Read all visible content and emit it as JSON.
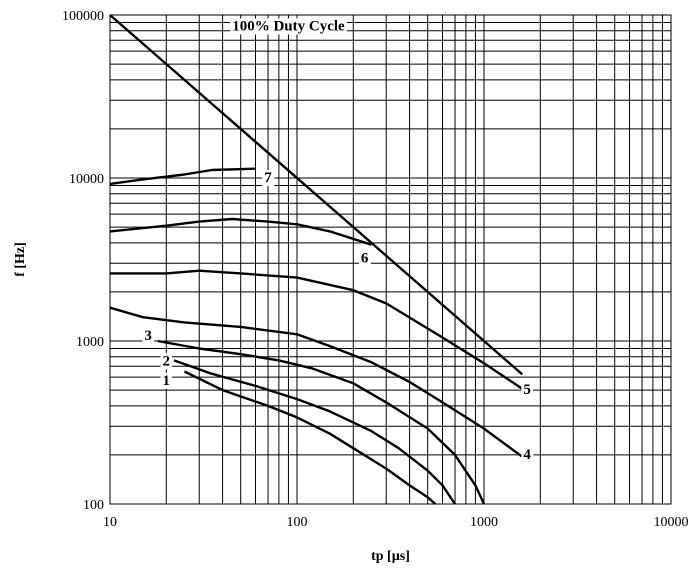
{
  "chart_data": {
    "type": "line",
    "xlabel": "tp [µs]",
    "ylabel": "f [Hz]",
    "x_scale": "log",
    "y_scale": "log",
    "xlim": [
      10,
      10000
    ],
    "ylim": [
      100,
      100000
    ],
    "x_ticks": [
      "10",
      "100",
      "1000",
      "10000"
    ],
    "y_ticks": [
      "100",
      "1000",
      "10000",
      "100000"
    ],
    "grid": true,
    "annotations": [
      {
        "text": "100% Duty Cycle",
        "x": 90,
        "y": 85000
      }
    ],
    "series": [
      {
        "name": "100% Duty Cycle",
        "points": [
          [
            10,
            100000
          ],
          [
            1600,
            625
          ]
        ]
      },
      {
        "name": "1",
        "points": [
          [
            25,
            650
          ],
          [
            40,
            500
          ],
          [
            70,
            400
          ],
          [
            100,
            340
          ],
          [
            150,
            270
          ],
          [
            200,
            220
          ],
          [
            300,
            165
          ],
          [
            400,
            130
          ],
          [
            500,
            110
          ],
          [
            550,
            100
          ]
        ]
      },
      {
        "name": "2",
        "points": [
          [
            22,
            760
          ],
          [
            35,
            630
          ],
          [
            60,
            530
          ],
          [
            100,
            440
          ],
          [
            150,
            370
          ],
          [
            250,
            280
          ],
          [
            350,
            220
          ],
          [
            500,
            160
          ],
          [
            600,
            130
          ],
          [
            700,
            100
          ]
        ]
      },
      {
        "name": "3",
        "points": [
          [
            18,
            1000
          ],
          [
            30,
            900
          ],
          [
            50,
            830
          ],
          [
            80,
            760
          ],
          [
            120,
            680
          ],
          [
            200,
            550
          ],
          [
            300,
            420
          ],
          [
            500,
            290
          ],
          [
            700,
            200
          ],
          [
            900,
            130
          ],
          [
            1000,
            100
          ]
        ]
      },
      {
        "name": "4",
        "points": [
          [
            10,
            1600
          ],
          [
            15,
            1400
          ],
          [
            25,
            1300
          ],
          [
            50,
            1220
          ],
          [
            100,
            1100
          ],
          [
            150,
            930
          ],
          [
            250,
            740
          ],
          [
            400,
            560
          ],
          [
            600,
            420
          ],
          [
            1000,
            290
          ],
          [
            1600,
            195
          ]
        ]
      },
      {
        "name": "5",
        "points": [
          [
            10,
            2600
          ],
          [
            20,
            2600
          ],
          [
            30,
            2700
          ],
          [
            50,
            2600
          ],
          [
            100,
            2450
          ],
          [
            200,
            2050
          ],
          [
            300,
            1700
          ],
          [
            600,
            1050
          ],
          [
            1000,
            730
          ],
          [
            1600,
            510
          ]
        ]
      },
      {
        "name": "6",
        "points": [
          [
            10,
            4700
          ],
          [
            20,
            5100
          ],
          [
            30,
            5400
          ],
          [
            45,
            5600
          ],
          [
            70,
            5400
          ],
          [
            100,
            5200
          ],
          [
            150,
            4700
          ],
          [
            250,
            3900
          ]
        ]
      },
      {
        "name": "7",
        "points": [
          [
            10,
            9200
          ],
          [
            15,
            9800
          ],
          [
            25,
            10500
          ],
          [
            35,
            11200
          ],
          [
            60,
            11400
          ]
        ]
      }
    ],
    "curve_labels": [
      {
        "text": "1",
        "x": 20,
        "y": 570
      },
      {
        "text": "2",
        "x": 20,
        "y": 750
      },
      {
        "text": "3",
        "x": 16,
        "y": 1070
      },
      {
        "text": "4",
        "x": 1700,
        "y": 200
      },
      {
        "text": "5",
        "x": 1700,
        "y": 500
      },
      {
        "text": "6",
        "x": 230,
        "y": 3200
      },
      {
        "text": "7",
        "x": 70,
        "y": 10000
      }
    ]
  }
}
